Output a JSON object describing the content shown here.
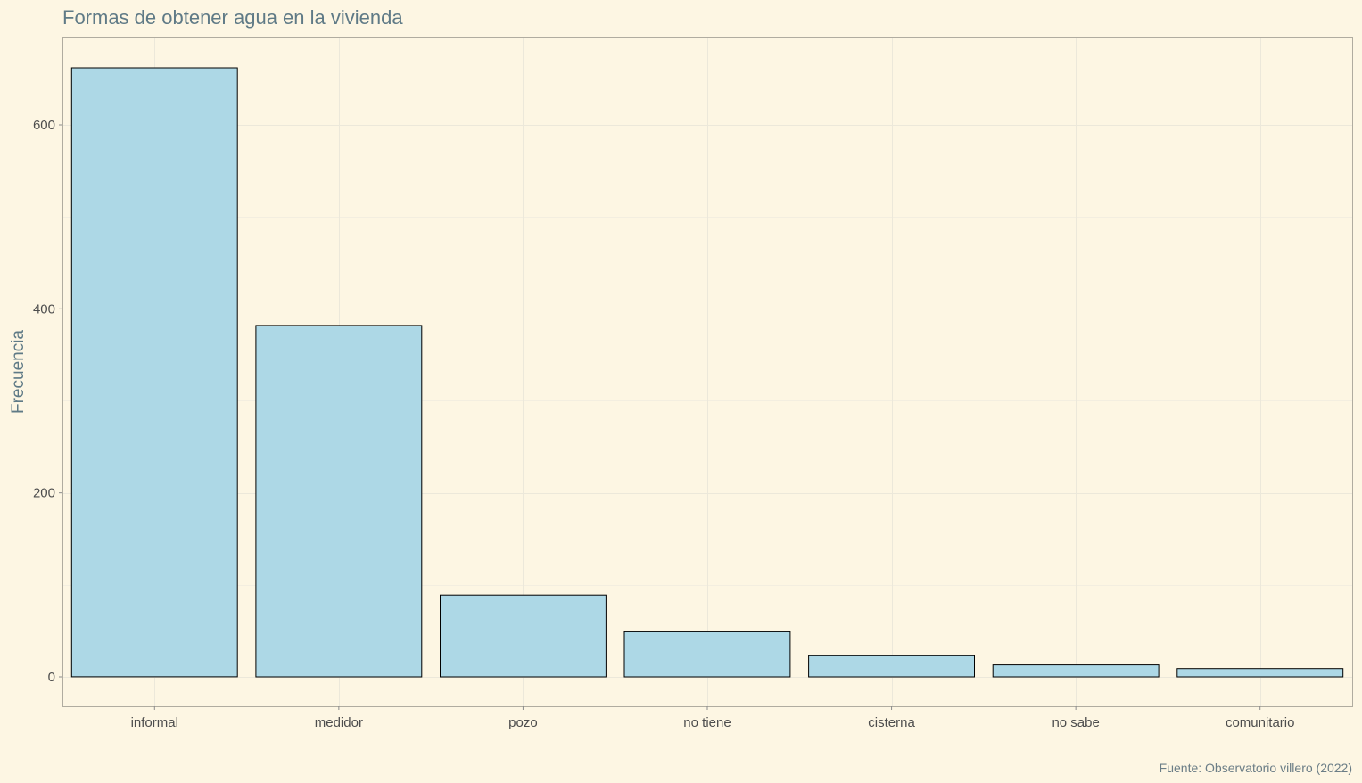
{
  "chart_data": {
    "type": "bar",
    "title": "Formas de obtener agua en la vivienda",
    "xlabel": "",
    "ylabel": "Frecuencia",
    "caption": "Fuente: Observatorio villero (2022)",
    "categories": [
      "informal",
      "medidor",
      "pozo",
      "no tiene",
      "cisterna",
      "no sabe",
      "comunitario"
    ],
    "values": [
      662,
      382,
      89,
      49,
      23,
      13,
      9
    ],
    "ylim": [
      -32,
      695
    ],
    "yticks": [
      0,
      200,
      400,
      600
    ],
    "grid": true,
    "legend": "none",
    "colors": {
      "bar_fill": "#add8e6",
      "bar_stroke": "#000000",
      "background": "#fdf6e3"
    }
  }
}
